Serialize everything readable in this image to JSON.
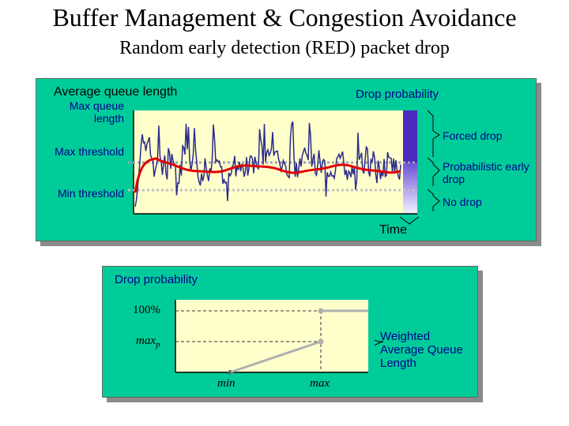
{
  "title": "Buffer Management & Congestion Avoidance",
  "subtitle": "Random early detection (RED) packet drop",
  "top_panel": {
    "average_queue_length": "Average queue length",
    "drop_probability": "Drop probability",
    "max_queue_length": "Max queue length",
    "max_threshold": "Max threshold",
    "min_threshold": "Min threshold",
    "forced_drop": "Forced drop",
    "probabilistic_early_drop": "Probabilistic early drop",
    "no_drop": "No drop",
    "time": "Time",
    "colors": {
      "panel": "#00cc99",
      "plot": "#ffffcc",
      "queue": "#2b2b8c",
      "average": "#e00000",
      "forced_drop_bar": "#4a2bbf"
    }
  },
  "bottom_panel": {
    "drop_probability": "Drop probability",
    "p100": "100%",
    "maxp": "max",
    "maxp_sub": "p",
    "weighted_avg": "Weighted Average Queue Length",
    "min": "min",
    "max": "max"
  }
}
